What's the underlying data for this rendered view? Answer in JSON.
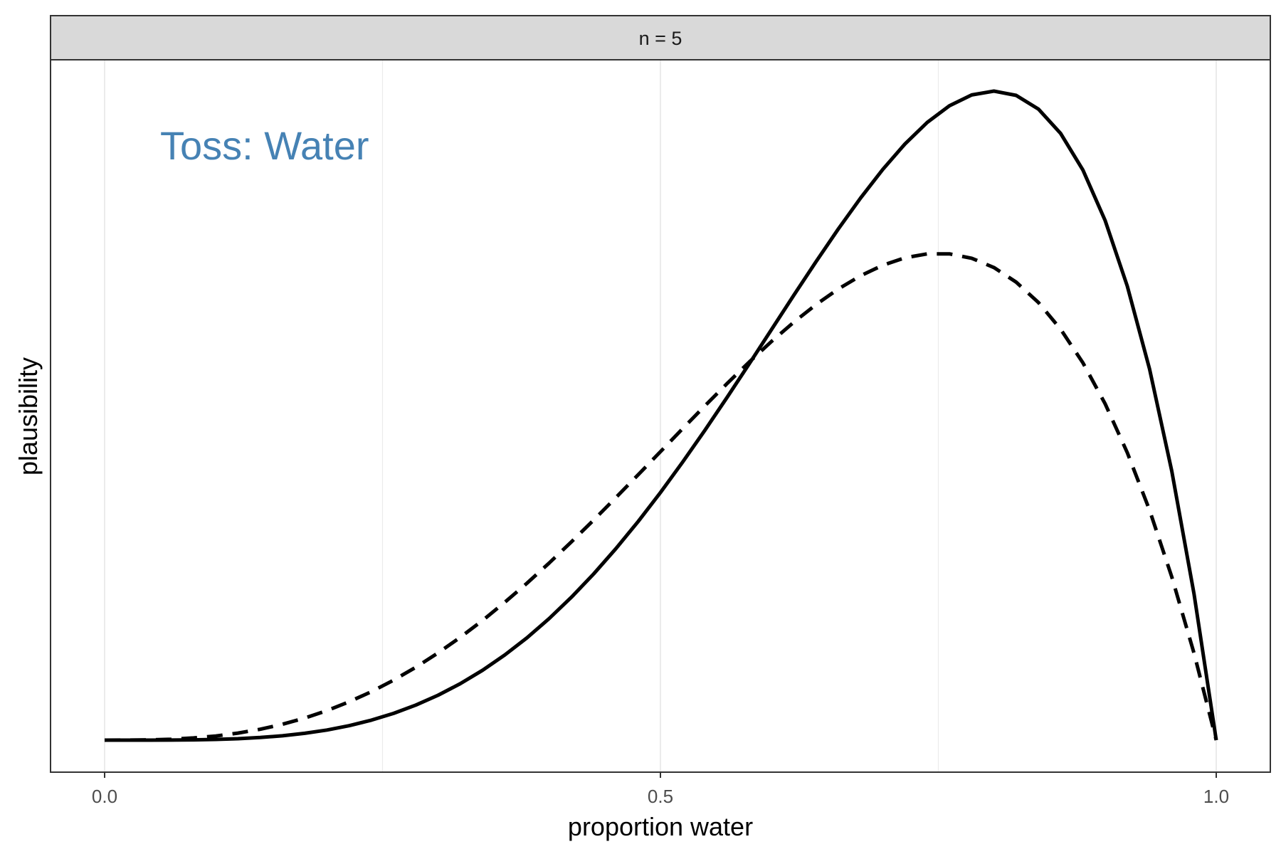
{
  "chart_data": {
    "type": "line",
    "facet_label": "n = 5",
    "annotation": {
      "text": "Toss: Water",
      "color": "#4682b4"
    },
    "xlabel": "proportion water",
    "ylabel": "plausibility",
    "xlim": [
      0,
      1
    ],
    "ylim": [
      0,
      1
    ],
    "x_ticks": [
      "0.0",
      "0.5",
      "1.0"
    ],
    "x_tick_values": [
      0,
      0.5,
      1
    ],
    "y_ticks": [],
    "grid": true,
    "legend": "none",
    "series": [
      {
        "line_style": "dashed",
        "color": "#000000",
        "function": "binomial",
        "successes": 3,
        "failures": 1
      },
      {
        "line_style": "solid",
        "color": "#000000",
        "function": "binomial",
        "successes": 4,
        "failures": 1
      }
    ]
  }
}
